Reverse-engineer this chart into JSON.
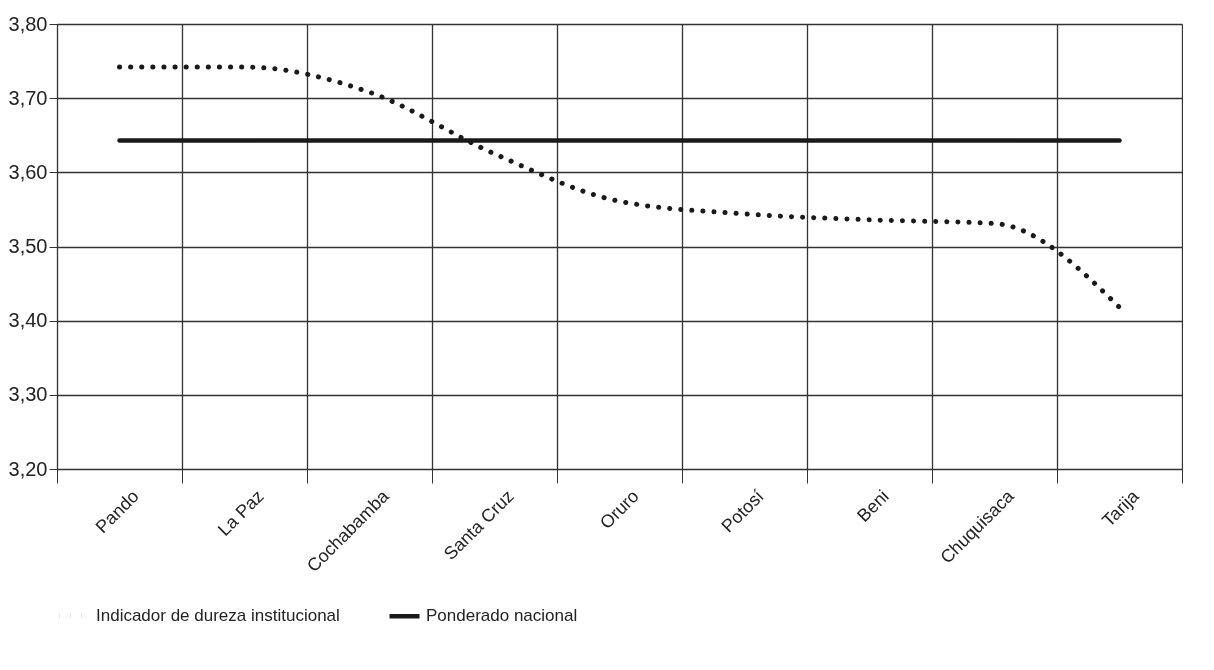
{
  "chart_data": {
    "type": "line",
    "categories": [
      "Pando",
      "La Paz",
      "Cochabamba",
      "Santa Cruz",
      "Oruro",
      "Potosí",
      "Beni",
      "Chuquisaca",
      "Tarija"
    ],
    "series": [
      {
        "name": "Indicador de dureza institucional",
        "color": "#1a1a1a",
        "line_style": "dotted",
        "values": [
          3.742,
          3.742,
          3.708,
          3.625,
          3.561,
          3.544,
          3.536,
          3.531,
          3.418
        ]
      },
      {
        "name": "Ponderado nacional",
        "color": "#1a1a1a",
        "line_style": "solid",
        "values": [
          3.643,
          3.643,
          3.643,
          3.643,
          3.643,
          3.643,
          3.643,
          3.643,
          3.643
        ]
      }
    ],
    "ylim": [
      3.2,
      3.8
    ],
    "yticks": [
      {
        "value": 3.2,
        "label": "3,20"
      },
      {
        "value": 3.3,
        "label": "3,30"
      },
      {
        "value": 3.4,
        "label": "3,40"
      },
      {
        "value": 3.5,
        "label": "3,50"
      },
      {
        "value": 3.6,
        "label": "3,60"
      },
      {
        "value": 3.7,
        "label": "3,70"
      },
      {
        "value": 3.8,
        "label": "3,80"
      }
    ],
    "grid": true,
    "legend": "bottom",
    "marker": "none"
  }
}
